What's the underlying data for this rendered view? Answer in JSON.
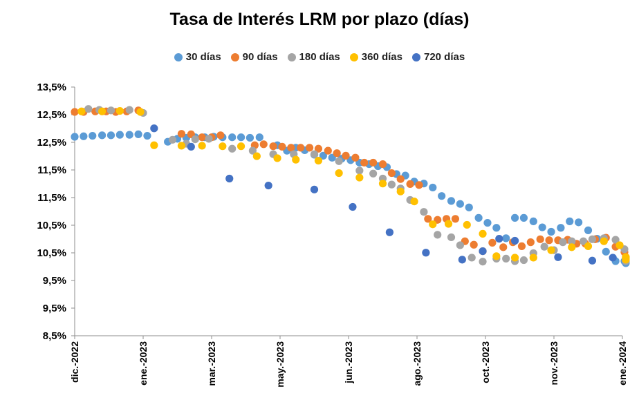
{
  "chart_data": {
    "type": "scatter",
    "title": "Tasa de Interés LRM por plazo (días)",
    "legend_position": "top",
    "grid": false,
    "y_tick_labels": [
      "13,5%",
      "12,5%",
      "12,5%",
      "11,5%",
      "11,5%",
      "10,5%",
      "10,5%",
      "9,5%",
      "9,5%",
      "8,5%"
    ],
    "x_tick_labels": [
      "dic.-2022",
      "ene.-2023",
      "mar.-2023",
      "may.-2023",
      "jun.-2023",
      "ago.-2023",
      "oct.-2023",
      "nov.-2023",
      "ene.-2024"
    ],
    "x_range": [
      0,
      8
    ],
    "y_range": [
      8.5,
      13.5
    ],
    "series": [
      {
        "name": "30 días",
        "color": "#5B9BD5",
        "points": [
          [
            0,
            12.5
          ],
          [
            0.13,
            12.51
          ],
          [
            0.26,
            12.52
          ],
          [
            0.4,
            12.53
          ],
          [
            0.53,
            12.53
          ],
          [
            0.66,
            12.54
          ],
          [
            0.8,
            12.54
          ],
          [
            0.93,
            12.55
          ],
          [
            1.06,
            12.52
          ],
          [
            1.36,
            12.4
          ],
          [
            1.5,
            12.46
          ],
          [
            1.63,
            12.48
          ],
          [
            1.76,
            12.49
          ],
          [
            1.9,
            12.49
          ],
          [
            2.03,
            12.5
          ],
          [
            2.16,
            12.49
          ],
          [
            2.3,
            12.49
          ],
          [
            2.43,
            12.49
          ],
          [
            2.56,
            12.48
          ],
          [
            2.7,
            12.49
          ],
          [
            2.96,
            12.33
          ],
          [
            3.1,
            12.22
          ],
          [
            3.23,
            12.28
          ],
          [
            3.36,
            12.23
          ],
          [
            3.5,
            12.14
          ],
          [
            3.63,
            12.12
          ],
          [
            3.76,
            12.08
          ],
          [
            3.9,
            12.06
          ],
          [
            4.03,
            12.03
          ],
          [
            4.16,
            11.98
          ],
          [
            4.3,
            11.95
          ],
          [
            4.43,
            11.91
          ],
          [
            4.56,
            11.89
          ],
          [
            4.7,
            11.75
          ],
          [
            4.83,
            11.72
          ],
          [
            4.96,
            11.6
          ],
          [
            5.1,
            11.56
          ],
          [
            5.23,
            11.48
          ],
          [
            5.36,
            11.31
          ],
          [
            5.5,
            11.21
          ],
          [
            5.63,
            11.15
          ],
          [
            5.76,
            11.08
          ],
          [
            5.9,
            10.87
          ],
          [
            6.03,
            10.77
          ],
          [
            6.16,
            10.67
          ],
          [
            6.3,
            10.46
          ],
          [
            6.43,
            10.87
          ],
          [
            6.56,
            10.87
          ],
          [
            6.7,
            10.8
          ],
          [
            6.83,
            10.68
          ],
          [
            6.96,
            10.59
          ],
          [
            7.1,
            10.67
          ],
          [
            7.23,
            10.8
          ],
          [
            7.36,
            10.78
          ],
          [
            7.5,
            10.62
          ],
          [
            7.63,
            10.45
          ],
          [
            7.76,
            10.19
          ],
          [
            7.9,
            10.0
          ],
          [
            8.03,
            10.0
          ],
          [
            8.16,
            9.99
          ],
          [
            8.3,
            9.96
          ]
        ]
      },
      {
        "name": "90 días",
        "color": "#ED7D31",
        "points": [
          [
            0,
            13.0
          ],
          [
            0.13,
            13.0
          ],
          [
            0.3,
            13.01
          ],
          [
            0.46,
            13.01
          ],
          [
            0.6,
            13.0
          ],
          [
            0.76,
            13.01
          ],
          [
            0.93,
            13.03
          ],
          [
            1.56,
            12.56
          ],
          [
            1.7,
            12.55
          ],
          [
            1.86,
            12.49
          ],
          [
            2.0,
            12.49
          ],
          [
            2.13,
            12.53
          ],
          [
            2.63,
            12.33
          ],
          [
            2.76,
            12.35
          ],
          [
            2.9,
            12.31
          ],
          [
            3.03,
            12.3
          ],
          [
            3.16,
            12.28
          ],
          [
            3.3,
            12.28
          ],
          [
            3.43,
            12.28
          ],
          [
            3.56,
            12.26
          ],
          [
            3.7,
            12.22
          ],
          [
            3.83,
            12.17
          ],
          [
            3.96,
            12.12
          ],
          [
            4.1,
            12.08
          ],
          [
            4.23,
            11.98
          ],
          [
            4.36,
            11.98
          ],
          [
            4.5,
            11.95
          ],
          [
            4.63,
            11.77
          ],
          [
            4.76,
            11.65
          ],
          [
            4.9,
            11.55
          ],
          [
            5.03,
            11.53
          ],
          [
            5.16,
            10.85
          ],
          [
            5.3,
            10.83
          ],
          [
            5.43,
            10.85
          ],
          [
            5.56,
            10.85
          ],
          [
            5.7,
            10.4
          ],
          [
            5.83,
            10.33
          ],
          [
            5.96,
            10.2
          ],
          [
            6.1,
            10.37
          ],
          [
            6.26,
            10.28
          ],
          [
            6.4,
            10.38
          ],
          [
            6.53,
            10.3
          ],
          [
            6.66,
            10.38
          ],
          [
            6.8,
            10.44
          ],
          [
            6.93,
            10.42
          ],
          [
            7.06,
            10.42
          ],
          [
            7.2,
            10.43
          ],
          [
            7.33,
            10.35
          ],
          [
            7.46,
            10.35
          ],
          [
            7.6,
            10.44
          ],
          [
            7.76,
            10.47
          ],
          [
            7.9,
            10.29
          ],
          [
            8.03,
            10.18
          ],
          [
            8.16,
            10.08
          ],
          [
            8.3,
            10.02
          ]
        ]
      },
      {
        "name": "180 días",
        "color": "#A5A5A5",
        "points": [
          [
            0.2,
            13.06
          ],
          [
            0.36,
            13.04
          ],
          [
            0.53,
            13.03
          ],
          [
            0.8,
            13.04
          ],
          [
            1.0,
            12.98
          ],
          [
            1.43,
            12.44
          ],
          [
            1.63,
            12.36
          ],
          [
            1.76,
            12.45
          ],
          [
            1.96,
            12.46
          ],
          [
            2.3,
            12.26
          ],
          [
            2.6,
            12.22
          ],
          [
            2.9,
            12.15
          ],
          [
            3.2,
            12.15
          ],
          [
            3.5,
            12.15
          ],
          [
            3.86,
            12.01
          ],
          [
            4.16,
            11.82
          ],
          [
            4.36,
            11.76
          ],
          [
            4.5,
            11.66
          ],
          [
            4.63,
            11.54
          ],
          [
            4.76,
            11.46
          ],
          [
            4.9,
            11.23
          ],
          [
            5.1,
            10.99
          ],
          [
            5.3,
            10.53
          ],
          [
            5.5,
            10.48
          ],
          [
            5.63,
            10.32
          ],
          [
            5.8,
            10.07
          ],
          [
            5.96,
            9.99
          ],
          [
            6.16,
            10.05
          ],
          [
            6.3,
            10.05
          ],
          [
            6.43,
            10.0
          ],
          [
            6.56,
            10.02
          ],
          [
            6.7,
            10.16
          ],
          [
            6.86,
            10.29
          ],
          [
            7.0,
            10.22
          ],
          [
            7.13,
            10.38
          ],
          [
            7.26,
            10.4
          ],
          [
            7.43,
            10.4
          ],
          [
            7.56,
            10.44
          ],
          [
            7.73,
            10.46
          ],
          [
            7.9,
            10.43
          ],
          [
            8.03,
            10.24
          ],
          [
            8.16,
            10.05
          ],
          [
            8.3,
            10.0
          ]
        ]
      },
      {
        "name": "360 días",
        "color": "#FFC000",
        "points": [
          [
            0.1,
            13.01
          ],
          [
            0.4,
            13.01
          ],
          [
            0.66,
            13.02
          ],
          [
            0.96,
            13.0
          ],
          [
            1.16,
            12.33
          ],
          [
            1.56,
            12.32
          ],
          [
            1.86,
            12.32
          ],
          [
            2.16,
            12.31
          ],
          [
            2.43,
            12.31
          ],
          [
            2.66,
            12.11
          ],
          [
            2.96,
            12.07
          ],
          [
            3.23,
            12.04
          ],
          [
            3.56,
            12.02
          ],
          [
            3.86,
            11.77
          ],
          [
            4.16,
            11.68
          ],
          [
            4.5,
            11.56
          ],
          [
            4.76,
            11.4
          ],
          [
            4.96,
            11.2
          ],
          [
            5.23,
            10.74
          ],
          [
            5.46,
            10.75
          ],
          [
            5.73,
            10.73
          ],
          [
            5.96,
            10.55
          ],
          [
            6.16,
            10.1
          ],
          [
            6.43,
            10.07
          ],
          [
            6.7,
            10.07
          ],
          [
            6.96,
            10.22
          ],
          [
            7.26,
            10.28
          ],
          [
            7.5,
            10.3
          ],
          [
            7.73,
            10.4
          ],
          [
            7.96,
            10.32
          ],
          [
            8.16,
            10.08
          ],
          [
            8.3,
            10.03
          ]
        ]
      },
      {
        "name": "720 días",
        "color": "#4472C4",
        "points": [
          [
            1.16,
            12.67
          ],
          [
            1.7,
            12.3
          ],
          [
            2.26,
            11.66
          ],
          [
            2.83,
            11.52
          ],
          [
            3.5,
            11.44
          ],
          [
            4.06,
            11.09
          ],
          [
            4.6,
            10.58
          ],
          [
            5.13,
            10.17
          ],
          [
            5.66,
            10.03
          ],
          [
            5.96,
            10.2
          ],
          [
            6.2,
            10.45
          ],
          [
            6.43,
            10.41
          ],
          [
            7.06,
            10.08
          ],
          [
            7.56,
            10.01
          ],
          [
            7.86,
            10.07
          ]
        ]
      }
    ]
  }
}
